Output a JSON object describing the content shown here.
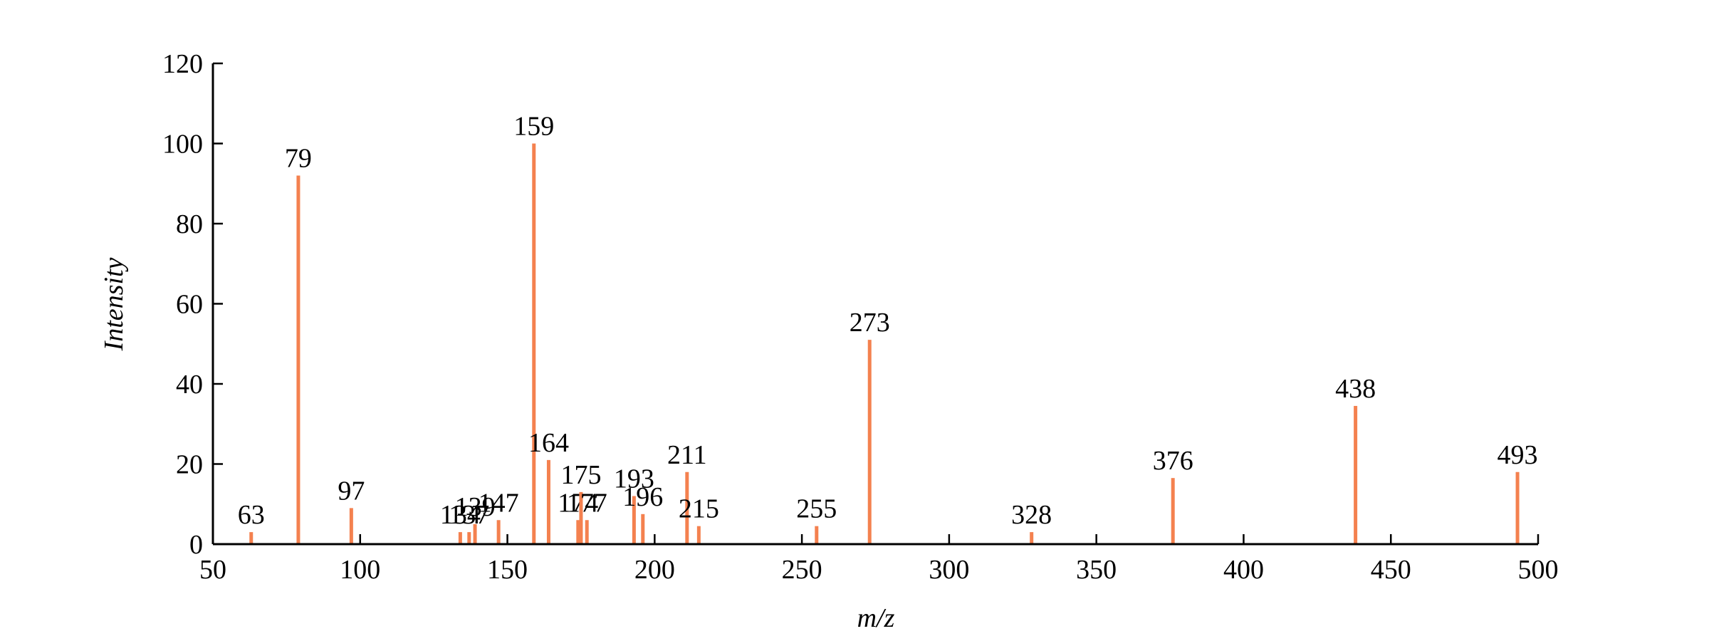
{
  "chart_data": {
    "type": "stem",
    "xlabel": "m/z",
    "ylabel": "Intensity",
    "x": [
      63,
      79,
      97,
      134,
      137,
      139,
      147,
      159,
      164,
      174,
      175,
      177,
      193,
      196,
      211,
      215,
      255,
      273,
      328,
      376,
      438,
      493
    ],
    "values": [
      3,
      92,
      9,
      3,
      3,
      5,
      6,
      100,
      21,
      6,
      13,
      6,
      12,
      7.5,
      18,
      4.5,
      4.5,
      51,
      3,
      16.5,
      34.5,
      18
    ],
    "color": "#f4814f",
    "xlim": [
      50,
      500
    ],
    "xticks": [
      50,
      100,
      150,
      200,
      250,
      300,
      350,
      400,
      450,
      500
    ],
    "ylim": [
      0,
      120
    ],
    "yticks": [
      0,
      20,
      40,
      60,
      80,
      100,
      120
    ]
  }
}
